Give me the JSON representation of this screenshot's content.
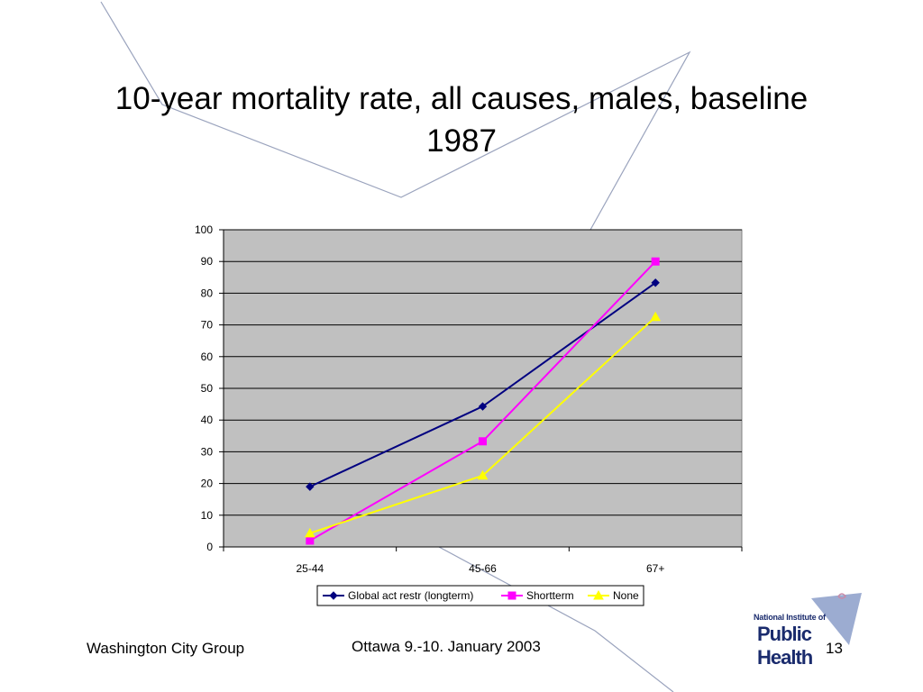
{
  "title": "10-year mortality rate, all causes, males, baseline 1987",
  "footer": {
    "left": "Washington City Group",
    "center": "Ottawa 9.-10. January 2003",
    "page": "13"
  },
  "logo": {
    "line1": "National Institute of",
    "line2": "Public Health"
  },
  "colors": {
    "plot_background": "#c0c0c0",
    "decor_lines": "#9aa3bd",
    "logo_shape": "#8b9dc9"
  },
  "chart_data": {
    "type": "line",
    "title": "",
    "xlabel": "",
    "ylabel": "",
    "categories": [
      "25-44",
      "45-66",
      "67+"
    ],
    "ylim": [
      0,
      100
    ],
    "yticks": [
      0,
      10,
      20,
      30,
      40,
      50,
      60,
      70,
      80,
      90,
      100
    ],
    "grid": true,
    "legend_position": "bottom",
    "series": [
      {
        "name": "Global act restr (longterm)",
        "values": [
          19,
          44.3,
          83.3
        ],
        "color": "#000080",
        "marker": "diamond"
      },
      {
        "name": "Shortterm",
        "values": [
          2,
          33.3,
          90
        ],
        "color": "#ff00ff",
        "marker": "square"
      },
      {
        "name": "None",
        "values": [
          4.3,
          22.5,
          72.5
        ],
        "color": "#ffff00",
        "marker": "triangle"
      }
    ]
  }
}
